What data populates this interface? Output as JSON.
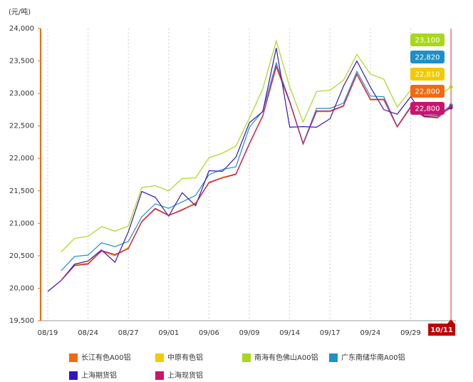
{
  "chart_data": {
    "type": "line",
    "y_label": "(元/吨)",
    "categories": [
      "08/19",
      null,
      null,
      "08/24",
      null,
      null,
      "08/27",
      null,
      null,
      "09/01",
      null,
      null,
      "09/06",
      null,
      null,
      "09/09",
      null,
      null,
      "09/14",
      null,
      null,
      "09/17",
      null,
      null,
      "09/24",
      null,
      null,
      "09/29",
      null,
      null,
      "10/11"
    ],
    "ylim": [
      19500,
      24000
    ],
    "yticks": [
      {
        "value": 19500,
        "label": "19,500"
      },
      {
        "value": 20000,
        "label": "20,000"
      },
      {
        "value": 20500,
        "label": "20,500"
      },
      {
        "value": 21000,
        "label": "21,000"
      },
      {
        "value": 21500,
        "label": "21,500"
      },
      {
        "value": 22000,
        "label": "22,000"
      },
      {
        "value": 22500,
        "label": "22,500"
      },
      {
        "value": 23000,
        "label": "23,000"
      },
      {
        "value": 23500,
        "label": "23,500"
      },
      {
        "value": 24000,
        "label": "24,000"
      }
    ],
    "series": [
      {
        "name": "长江有色A00铝",
        "color": "#f26a10",
        "values": [
          null,
          20120,
          20350,
          20380,
          20570,
          20500,
          20620,
          21020,
          21220,
          21120,
          21200,
          21310,
          21620,
          21700,
          21750,
          22220,
          22650,
          23400,
          22860,
          22230,
          22720,
          22720,
          22800,
          23290,
          22900,
          22900,
          22480,
          22780,
          22640,
          22620,
          22800
        ],
        "value_labels": [
          null,
          null,
          null,
          null,
          null,
          null,
          null,
          null,
          null,
          null,
          null,
          null,
          null,
          null,
          null,
          null,
          null,
          null,
          null,
          null,
          null,
          null,
          null,
          null,
          null,
          null,
          null,
          null,
          null,
          null,
          "22,800"
        ]
      },
      {
        "name": "中原有色铝",
        "color": "#f5c800",
        "values": [
          null,
          20130,
          20360,
          20390,
          20580,
          20510,
          20630,
          21030,
          21230,
          21130,
          21210,
          21320,
          21630,
          21710,
          21760,
          22230,
          22660,
          23410,
          22870,
          22240,
          22730,
          22730,
          22810,
          23300,
          22910,
          22910,
          22490,
          22790,
          22650,
          22630,
          22810
        ],
        "value_labels": [
          null,
          null,
          null,
          null,
          null,
          null,
          null,
          null,
          null,
          null,
          null,
          null,
          null,
          null,
          null,
          null,
          null,
          null,
          null,
          null,
          null,
          null,
          null,
          null,
          null,
          null,
          null,
          null,
          null,
          null,
          "22,810"
        ]
      },
      {
        "name": "南海有色佛山A00铝",
        "color": "#a8d81c",
        "values": [
          null,
          20560,
          20770,
          20800,
          20950,
          20880,
          20960,
          21550,
          21580,
          21500,
          21690,
          21700,
          22010,
          22080,
          22190,
          22620,
          23070,
          23810,
          23100,
          22560,
          23030,
          23050,
          23200,
          23600,
          23300,
          23220,
          22790,
          23050,
          23020,
          22950,
          23100
        ],
        "value_labels": [
          null,
          null,
          null,
          null,
          null,
          null,
          null,
          null,
          null,
          null,
          null,
          null,
          null,
          null,
          null,
          null,
          null,
          null,
          null,
          null,
          null,
          null,
          null,
          null,
          null,
          null,
          null,
          null,
          null,
          null,
          "23,100"
        ]
      },
      {
        "name": "广东南储华南A00铝",
        "color": "#1e8fc8",
        "values": [
          null,
          20270,
          20490,
          20510,
          20700,
          20640,
          20720,
          21100,
          21300,
          21230,
          21330,
          21430,
          21750,
          21830,
          21870,
          22480,
          22730,
          23470,
          22880,
          22230,
          22770,
          22770,
          22850,
          23340,
          22960,
          22950,
          22490,
          22800,
          22660,
          22650,
          22820
        ],
        "value_labels": [
          null,
          null,
          null,
          null,
          null,
          null,
          null,
          null,
          null,
          null,
          null,
          null,
          null,
          null,
          null,
          null,
          null,
          null,
          null,
          null,
          null,
          null,
          null,
          null,
          null,
          null,
          null,
          null,
          null,
          null,
          "22,820"
        ]
      },
      {
        "name": "上海期货铝",
        "color": "#3315c0",
        "values": [
          19950,
          20120,
          20370,
          20420,
          20590,
          20400,
          20870,
          21490,
          21400,
          21110,
          21470,
          21270,
          21810,
          21800,
          22020,
          22550,
          22720,
          23700,
          22480,
          22490,
          22480,
          22610,
          23110,
          23500,
          23100,
          22750,
          22680,
          22950,
          22650,
          22660,
          22780
        ]
      },
      {
        "name": "上海现货铝",
        "color": "#c8146e",
        "values": [
          null,
          20120,
          20350,
          20370,
          20580,
          20520,
          20610,
          21030,
          21230,
          21120,
          21210,
          21300,
          21630,
          21700,
          21760,
          22230,
          22660,
          23420,
          22870,
          22220,
          22730,
          22730,
          22810,
          23300,
          22910,
          22910,
          22490,
          22790,
          22640,
          22630,
          22800
        ],
        "value_labels": [
          null,
          null,
          null,
          null,
          null,
          null,
          null,
          null,
          null,
          null,
          null,
          null,
          null,
          null,
          null,
          null,
          null,
          null,
          null,
          null,
          null,
          null,
          null,
          null,
          null,
          null,
          null,
          null,
          null,
          null,
          "22,800"
        ]
      }
    ]
  }
}
